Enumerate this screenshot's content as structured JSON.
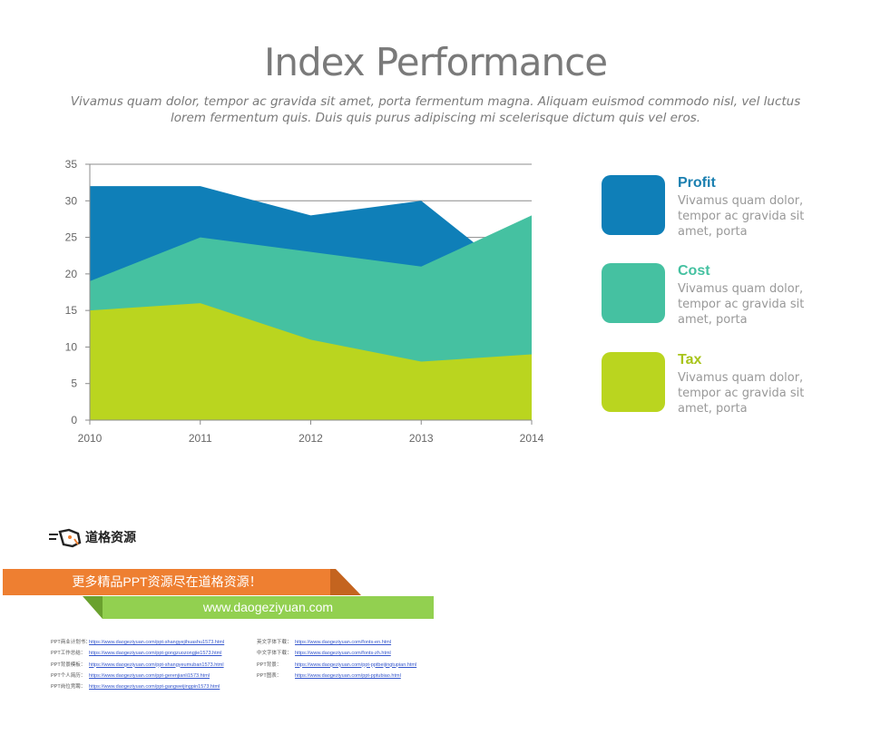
{
  "header": {
    "title": "Index Performance",
    "subtitle": "Vivamus quam dolor, tempor ac gravida sit amet, porta fermentum magna. Aliquam euismod commodo nisl, vel luctus lorem fermentum quis. Duis quis purus adipiscing mi scelerisque dictum quis vel eros."
  },
  "chart_data": {
    "type": "area",
    "stacked": false,
    "x": [
      "2010",
      "2011",
      "2012",
      "2013",
      "2014"
    ],
    "series": [
      {
        "name": "Profit",
        "values": [
          32,
          32,
          28,
          30,
          18
        ],
        "color": "#0f7fb8"
      },
      {
        "name": "Cost",
        "values": [
          19,
          25,
          23,
          21,
          28
        ],
        "color": "#45c1a1"
      },
      {
        "name": "Tax",
        "values": [
          15,
          16,
          11,
          8,
          9
        ],
        "color": "#bad51f"
      }
    ],
    "yticks": [
      "0",
      "5",
      "10",
      "15",
      "20",
      "25",
      "30",
      "35"
    ],
    "ylim": [
      0,
      35
    ],
    "grid": true,
    "legend": "right"
  },
  "legend": [
    {
      "name": "Profit",
      "desc": "Vivamus quam dolor, tempor ac gravida sit amet, porta",
      "color": "#0f7fb8",
      "text_color": "#1a7fb0"
    },
    {
      "name": "Cost",
      "desc": "Vivamus quam dolor, tempor ac gravida sit amet, porta",
      "color": "#45c1a1",
      "text_color": "#45c1a1"
    },
    {
      "name": "Tax",
      "desc": "Vivamus quam dolor, tempor ac gravida sit amet, porta",
      "color": "#bad51f",
      "text_color": "#a8c41a"
    }
  ],
  "footer": {
    "logo_text": "道格资源",
    "banner_text": "更多精品PPT资源尽在道格资源！",
    "site_url": "www.daogeziyuan.com",
    "links_left": [
      {
        "label": "PPT商业计划书：",
        "url": "https://www.daogeziyuan.com/ppt-shangyejihuashu1573.html"
      },
      {
        "label": "PPT工作总结：",
        "url": "https://www.daogeziyuan.com/ppt-gongzuozongjie1573.html"
      },
      {
        "label": "PPT背景模板：",
        "url": "https://www.daogeziyuan.com/ppt-shangyeumuban1573.html"
      },
      {
        "label": "PPT个人简历：",
        "url": "https://www.daogeziyuan.com/ppt-gerenjianli1573.html"
      },
      {
        "label": "PPT岗位竞聘：",
        "url": "https://www.daogeziyuan.com/ppt-gangweijingpin1573.html"
      }
    ],
    "links_right": [
      {
        "label": "英文字体下载：",
        "url": "https://www.daogeziyuan.com/fonts-en.html"
      },
      {
        "label": "中文字体下载：",
        "url": "https://www.daogeziyuan.com/fonts-zh.html"
      },
      {
        "label": "PPT背景：",
        "url": "https://www.daogeziyuan.com/ppt-pptbeijingtupian.html"
      },
      {
        "label": "PPT图表：",
        "url": "https://www.daogeziyuan.com/ppt-pptubiao.html"
      }
    ]
  }
}
